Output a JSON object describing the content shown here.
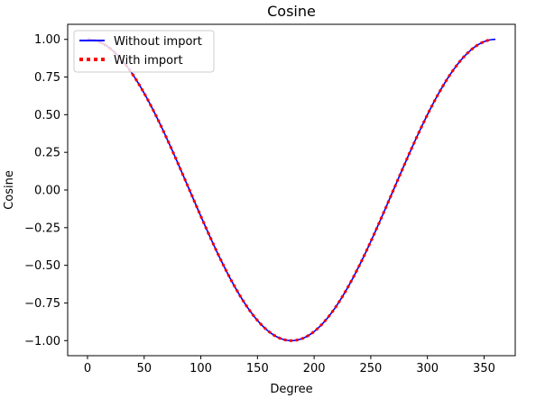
{
  "chart_data": {
    "type": "line",
    "title": "Cosine",
    "xlabel": "Degree",
    "ylabel": "Cosine",
    "xlim": [
      -17.5,
      377.5
    ],
    "ylim": [
      -1.1,
      1.1
    ],
    "xticks": [
      0,
      50,
      100,
      150,
      200,
      250,
      300,
      350
    ],
    "yticks": [
      -1.0,
      -0.75,
      -0.5,
      -0.25,
      0.0,
      0.25,
      0.5,
      0.75,
      1.0
    ],
    "ytick_labels": [
      "−1.00",
      "−0.75",
      "−0.50",
      "−0.25",
      "0.00",
      "0.25",
      "0.50",
      "0.75",
      "1.00"
    ],
    "xtick_labels": [
      "0",
      "50",
      "100",
      "150",
      "200",
      "250",
      "300",
      "350"
    ],
    "legend_position": "top-left",
    "grid": false,
    "series": [
      {
        "name": "Without import",
        "color": "#0000ff",
        "style": "solid",
        "x": [
          0,
          10,
          20,
          30,
          40,
          50,
          60,
          70,
          80,
          90,
          100,
          110,
          120,
          130,
          140,
          150,
          160,
          170,
          180,
          190,
          200,
          210,
          220,
          230,
          240,
          250,
          260,
          270,
          280,
          290,
          300,
          310,
          320,
          330,
          340,
          350,
          360
        ],
        "y": [
          1.0,
          0.985,
          0.94,
          0.866,
          0.766,
          0.643,
          0.5,
          0.342,
          0.174,
          0.0,
          -0.174,
          -0.342,
          -0.5,
          -0.643,
          -0.766,
          -0.866,
          -0.94,
          -0.985,
          -1.0,
          -0.985,
          -0.94,
          -0.866,
          -0.766,
          -0.643,
          -0.5,
          -0.342,
          -0.174,
          0.0,
          0.174,
          0.342,
          0.5,
          0.643,
          0.766,
          0.866,
          0.94,
          0.985,
          1.0
        ]
      },
      {
        "name": "With import",
        "color": "#ff0000",
        "style": "dotted",
        "x": [
          0,
          10,
          20,
          30,
          40,
          50,
          60,
          70,
          80,
          90,
          100,
          110,
          120,
          130,
          140,
          150,
          160,
          170,
          180,
          190,
          200,
          210,
          220,
          230,
          240,
          250,
          260,
          270,
          280,
          290,
          300,
          310,
          320,
          330,
          340,
          350,
          355
        ],
        "y": [
          1.0,
          0.985,
          0.94,
          0.866,
          0.766,
          0.643,
          0.5,
          0.342,
          0.174,
          0.0,
          -0.174,
          -0.342,
          -0.5,
          -0.643,
          -0.766,
          -0.866,
          -0.94,
          -0.985,
          -1.0,
          -0.985,
          -0.94,
          -0.866,
          -0.766,
          -0.643,
          -0.5,
          -0.342,
          -0.174,
          0.0,
          0.174,
          0.342,
          0.5,
          0.643,
          0.766,
          0.866,
          0.94,
          0.985,
          0.996
        ]
      }
    ]
  }
}
